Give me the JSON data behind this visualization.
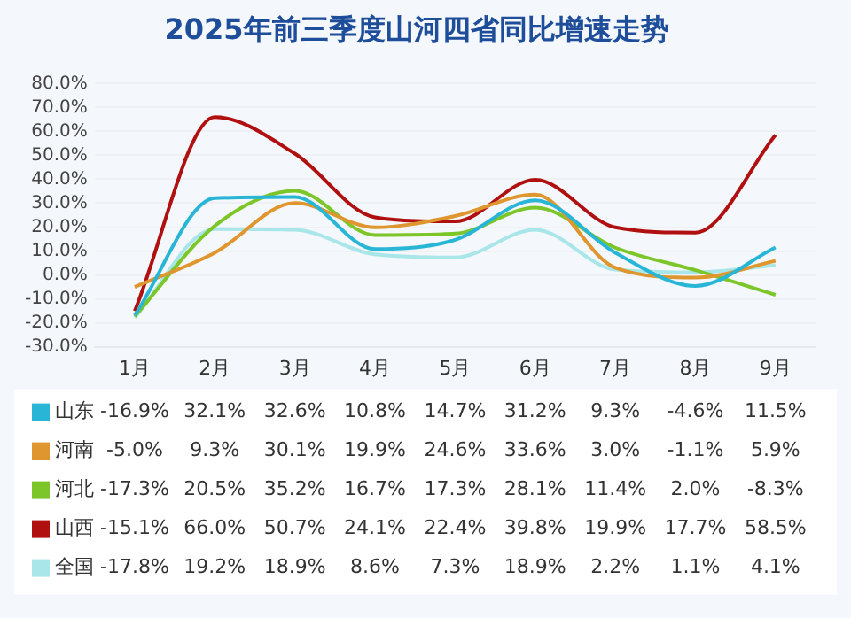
{
  "chart_data": {
    "type": "line",
    "title": "2025年前三季度山河四省同比增速走势",
    "categories": [
      "1月",
      "2月",
      "3月",
      "4月",
      "5月",
      "6月",
      "7月",
      "8月",
      "9月"
    ],
    "series": [
      {
        "name": "山东",
        "color": "#29b6d6",
        "values": [
          -16.9,
          32.1,
          32.6,
          10.8,
          14.7,
          31.2,
          9.3,
          -4.6,
          11.5
        ],
        "value_labels": [
          "-16.9%",
          "32.1%",
          "32.6%",
          "10.8%",
          "14.7%",
          "31.2%",
          "9.3%",
          "-4.6%",
          "11.5%"
        ]
      },
      {
        "name": "河南",
        "color": "#e0962e",
        "values": [
          -5.0,
          9.3,
          30.1,
          19.9,
          24.6,
          33.6,
          3.0,
          -1.1,
          5.9
        ],
        "value_labels": [
          "-5.0%",
          "9.3%",
          "30.1%",
          "19.9%",
          "24.6%",
          "33.6%",
          "3.0%",
          "-1.1%",
          "5.9%"
        ]
      },
      {
        "name": "河北",
        "color": "#7cc62a",
        "values": [
          -17.3,
          20.5,
          35.2,
          16.7,
          17.3,
          28.1,
          11.4,
          2.0,
          -8.3
        ],
        "value_labels": [
          "-17.3%",
          "20.5%",
          "35.2%",
          "16.7%",
          "17.3%",
          "28.1%",
          "11.4%",
          "2.0%",
          "-8.3%"
        ]
      },
      {
        "name": "山西",
        "color": "#b01010",
        "values": [
          -15.1,
          66.0,
          50.7,
          24.1,
          22.4,
          39.8,
          19.9,
          17.7,
          58.5
        ],
        "value_labels": [
          "-15.1%",
          "66.0%",
          "50.7%",
          "24.1%",
          "22.4%",
          "39.8%",
          "19.9%",
          "17.7%",
          "58.5%"
        ]
      },
      {
        "name": "全国",
        "color": "#a8e6ea",
        "values": [
          -17.8,
          19.2,
          18.9,
          8.6,
          7.3,
          18.9,
          2.2,
          1.1,
          4.1
        ],
        "value_labels": [
          "-17.8%",
          "19.2%",
          "18.9%",
          "8.6%",
          "7.3%",
          "18.9%",
          "2.2%",
          "1.1%",
          "4.1%"
        ]
      }
    ],
    "ylim": [
      -30,
      80
    ],
    "yticks": [
      {
        "value": -30,
        "label": "-30.0%"
      },
      {
        "value": -20,
        "label": "-20.0%"
      },
      {
        "value": -10,
        "label": "-10.0%"
      },
      {
        "value": 0,
        "label": "0.0%"
      },
      {
        "value": 10,
        "label": "10.0%"
      },
      {
        "value": 20,
        "label": "20.0%"
      },
      {
        "value": 30,
        "label": "30.0%"
      },
      {
        "value": 40,
        "label": "40.0%"
      },
      {
        "value": 50,
        "label": "50.0%"
      },
      {
        "value": 60,
        "label": "60.0%"
      },
      {
        "value": 70,
        "label": "70.0%"
      },
      {
        "value": 80,
        "label": "80.0%"
      }
    ],
    "grid": "y",
    "legend": "bottom left",
    "marker": "none"
  }
}
